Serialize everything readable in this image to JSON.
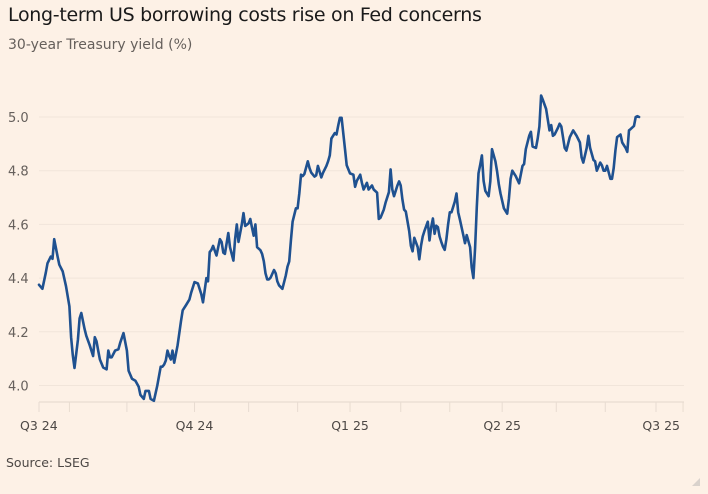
{
  "header": {
    "title": "Long-term US borrowing costs rise on Fed concerns",
    "subtitle": "30-year Treasury yield (%)"
  },
  "footer": {
    "source": "Source: LSEG"
  },
  "colors": {
    "background": "#fdf1e6",
    "line": "#1f5190",
    "grid": "#f1e5da"
  },
  "chart_data": {
    "type": "line",
    "title": "Long-term US borrowing costs rise on Fed concerns",
    "subtitle": "30-year Treasury yield (%)",
    "xlabel": "",
    "ylabel": "30-year Treasury yield (%)",
    "ylim": [
      3.935,
      5.1
    ],
    "xlim_days": [
      0,
      383
    ],
    "x_origin": "2024-07-01",
    "grid": true,
    "legend": "none",
    "yticks": [
      4.0,
      4.2,
      4.4,
      4.6,
      4.8,
      5.0
    ],
    "ytick_labels": [
      "4.0",
      "4.2",
      "4.4",
      "4.6",
      "4.8",
      "5.0"
    ],
    "xtick_labels": [
      {
        "label": "Q3 24",
        "day": 0
      },
      {
        "label": "Q4 24",
        "day": 92
      },
      {
        "label": "Q1 25",
        "day": 184
      },
      {
        "label": "Q2 25",
        "day": 274
      },
      {
        "label": "Q3 25",
        "day": 365
      }
    ],
    "minor_ticks_days": [
      0,
      18,
      52,
      92,
      124,
      153,
      184,
      214,
      243,
      274,
      306,
      335,
      365,
      381
    ],
    "series": [
      {
        "name": "30-year Treasury yield",
        "color": "#1f5190",
        "days": [
          0,
          2,
          4,
          5,
          7,
          8,
          9,
          11,
          12,
          14,
          16,
          18,
          19,
          20,
          21,
          23,
          24,
          25,
          27,
          28,
          30,
          32,
          33,
          34,
          35,
          36,
          38,
          40,
          41,
          42,
          43,
          45,
          47,
          48,
          50,
          52,
          53,
          55,
          57,
          59,
          60,
          62,
          63,
          65,
          66,
          68,
          70,
          72,
          73,
          74,
          75,
          76,
          77,
          78,
          79,
          80,
          82,
          84,
          85,
          87,
          89,
          90,
          92,
          94,
          96,
          97,
          99,
          100,
          101,
          102,
          103,
          105,
          106,
          107,
          108,
          109,
          110,
          112,
          113,
          115,
          116,
          117,
          118,
          120,
          121,
          122,
          124,
          125,
          126,
          127,
          128,
          129,
          131,
          132,
          133,
          134,
          135,
          136,
          137,
          139,
          140,
          141,
          142,
          144,
          146,
          147,
          148,
          149,
          150,
          152,
          153,
          154,
          155,
          156,
          157,
          159,
          160,
          161,
          163,
          164,
          165,
          167,
          168,
          170,
          171,
          172,
          173,
          175,
          176,
          177,
          178,
          179,
          181,
          182,
          184,
          186,
          187,
          188,
          190,
          191,
          192,
          193,
          194,
          195,
          197,
          198,
          200,
          201,
          202,
          204,
          205,
          207,
          208,
          209,
          210,
          212,
          213,
          214,
          215,
          216,
          217,
          219,
          220,
          221,
          222,
          224,
          225,
          226,
          227,
          228,
          230,
          231,
          232,
          233,
          234,
          235,
          236,
          237,
          238,
          239,
          240,
          241,
          242,
          243,
          244,
          246,
          247,
          248,
          249,
          251,
          252,
          253,
          255,
          256,
          257,
          258,
          259,
          260,
          261,
          262,
          263,
          264,
          266,
          267,
          268,
          270,
          271,
          272,
          273,
          275,
          277,
          278,
          279,
          280,
          282,
          284,
          286,
          287,
          288,
          290,
          291,
          292,
          294,
          295,
          296,
          297,
          298,
          300,
          302,
          303,
          304,
          305,
          307,
          308,
          309,
          311,
          312,
          314,
          316,
          318,
          320,
          321,
          322,
          324,
          325,
          326,
          328,
          329,
          330,
          332,
          333,
          334,
          335,
          336,
          338,
          339,
          340,
          341,
          342,
          344,
          345,
          347,
          348,
          349,
          350,
          352,
          353,
          354,
          355,
          357,
          358,
          360,
          361,
          362,
          363,
          364,
          366,
          367,
          368,
          369,
          370,
          371,
          372,
          374,
          375,
          376,
          377,
          379,
          381,
          382
        ],
        "values": [
          4.375,
          4.36,
          4.42,
          4.455,
          4.48,
          4.472,
          4.545,
          4.48,
          4.45,
          4.425,
          4.37,
          4.295,
          4.18,
          4.113,
          4.065,
          4.17,
          4.25,
          4.27,
          4.21,
          4.185,
          4.15,
          4.11,
          4.18,
          4.165,
          4.13,
          4.097,
          4.067,
          4.06,
          4.13,
          4.105,
          4.105,
          4.13,
          4.135,
          4.158,
          4.195,
          4.13,
          4.055,
          4.025,
          4.018,
          3.995,
          3.965,
          3.95,
          3.98,
          3.98,
          3.95,
          3.943,
          4.0,
          4.07,
          4.07,
          4.078,
          4.093,
          4.13,
          4.11,
          4.097,
          4.13,
          4.085,
          4.15,
          4.24,
          4.28,
          4.3,
          4.32,
          4.345,
          4.385,
          4.38,
          4.34,
          4.31,
          4.4,
          4.388,
          4.497,
          4.505,
          4.52,
          4.484,
          4.515,
          4.545,
          4.535,
          4.495,
          4.49,
          4.568,
          4.515,
          4.465,
          4.545,
          4.6,
          4.535,
          4.6,
          4.642,
          4.594,
          4.604,
          4.62,
          4.588,
          4.558,
          4.6,
          4.515,
          4.504,
          4.49,
          4.463,
          4.418,
          4.395,
          4.395,
          4.402,
          4.43,
          4.418,
          4.388,
          4.373,
          4.36,
          4.41,
          4.443,
          4.462,
          4.54,
          4.61,
          4.66,
          4.66,
          4.715,
          4.785,
          4.78,
          4.788,
          4.835,
          4.81,
          4.793,
          4.778,
          4.783,
          4.818,
          4.775,
          4.792,
          4.818,
          4.835,
          4.857,
          4.92,
          4.94,
          4.935,
          4.968,
          4.997,
          4.997,
          4.88,
          4.82,
          4.79,
          4.785,
          4.74,
          4.762,
          4.785,
          4.755,
          4.73,
          4.742,
          4.755,
          4.73,
          4.745,
          4.73,
          4.718,
          4.62,
          4.625,
          4.655,
          4.68,
          4.72,
          4.805,
          4.73,
          4.705,
          4.745,
          4.76,
          4.745,
          4.693,
          4.655,
          4.648,
          4.575,
          4.52,
          4.5,
          4.55,
          4.515,
          4.47,
          4.52,
          4.555,
          4.575,
          4.61,
          4.54,
          4.59,
          4.622,
          4.565,
          4.595,
          4.59,
          4.555,
          4.535,
          4.517,
          4.505,
          4.545,
          4.6,
          4.645,
          4.645,
          4.685,
          4.715,
          4.645,
          4.618,
          4.56,
          4.53,
          4.56,
          4.515,
          4.44,
          4.4,
          4.513,
          4.665,
          4.79,
          4.822,
          4.857,
          4.762,
          4.725,
          4.705,
          4.76,
          4.88,
          4.835,
          4.797,
          4.75,
          4.715,
          4.66,
          4.64,
          4.695,
          4.77,
          4.8,
          4.78,
          4.753,
          4.818,
          4.825,
          4.88,
          4.93,
          4.945,
          4.89,
          4.885,
          4.92,
          4.965,
          5.08,
          5.065,
          5.03,
          4.95,
          4.97,
          4.93,
          4.935,
          4.96,
          4.975,
          4.965,
          4.885,
          4.875,
          4.925,
          4.95,
          4.93,
          4.905,
          4.85,
          4.83,
          4.885,
          4.93,
          4.885,
          4.84,
          4.835,
          4.8,
          4.83,
          4.82,
          4.8,
          4.8,
          4.818,
          4.77,
          4.77,
          4.81,
          4.875,
          4.925,
          4.935,
          4.905,
          4.885,
          4.87,
          4.95,
          4.955,
          4.967,
          5.0,
          5.003,
          5.0
        ]
      }
    ]
  }
}
